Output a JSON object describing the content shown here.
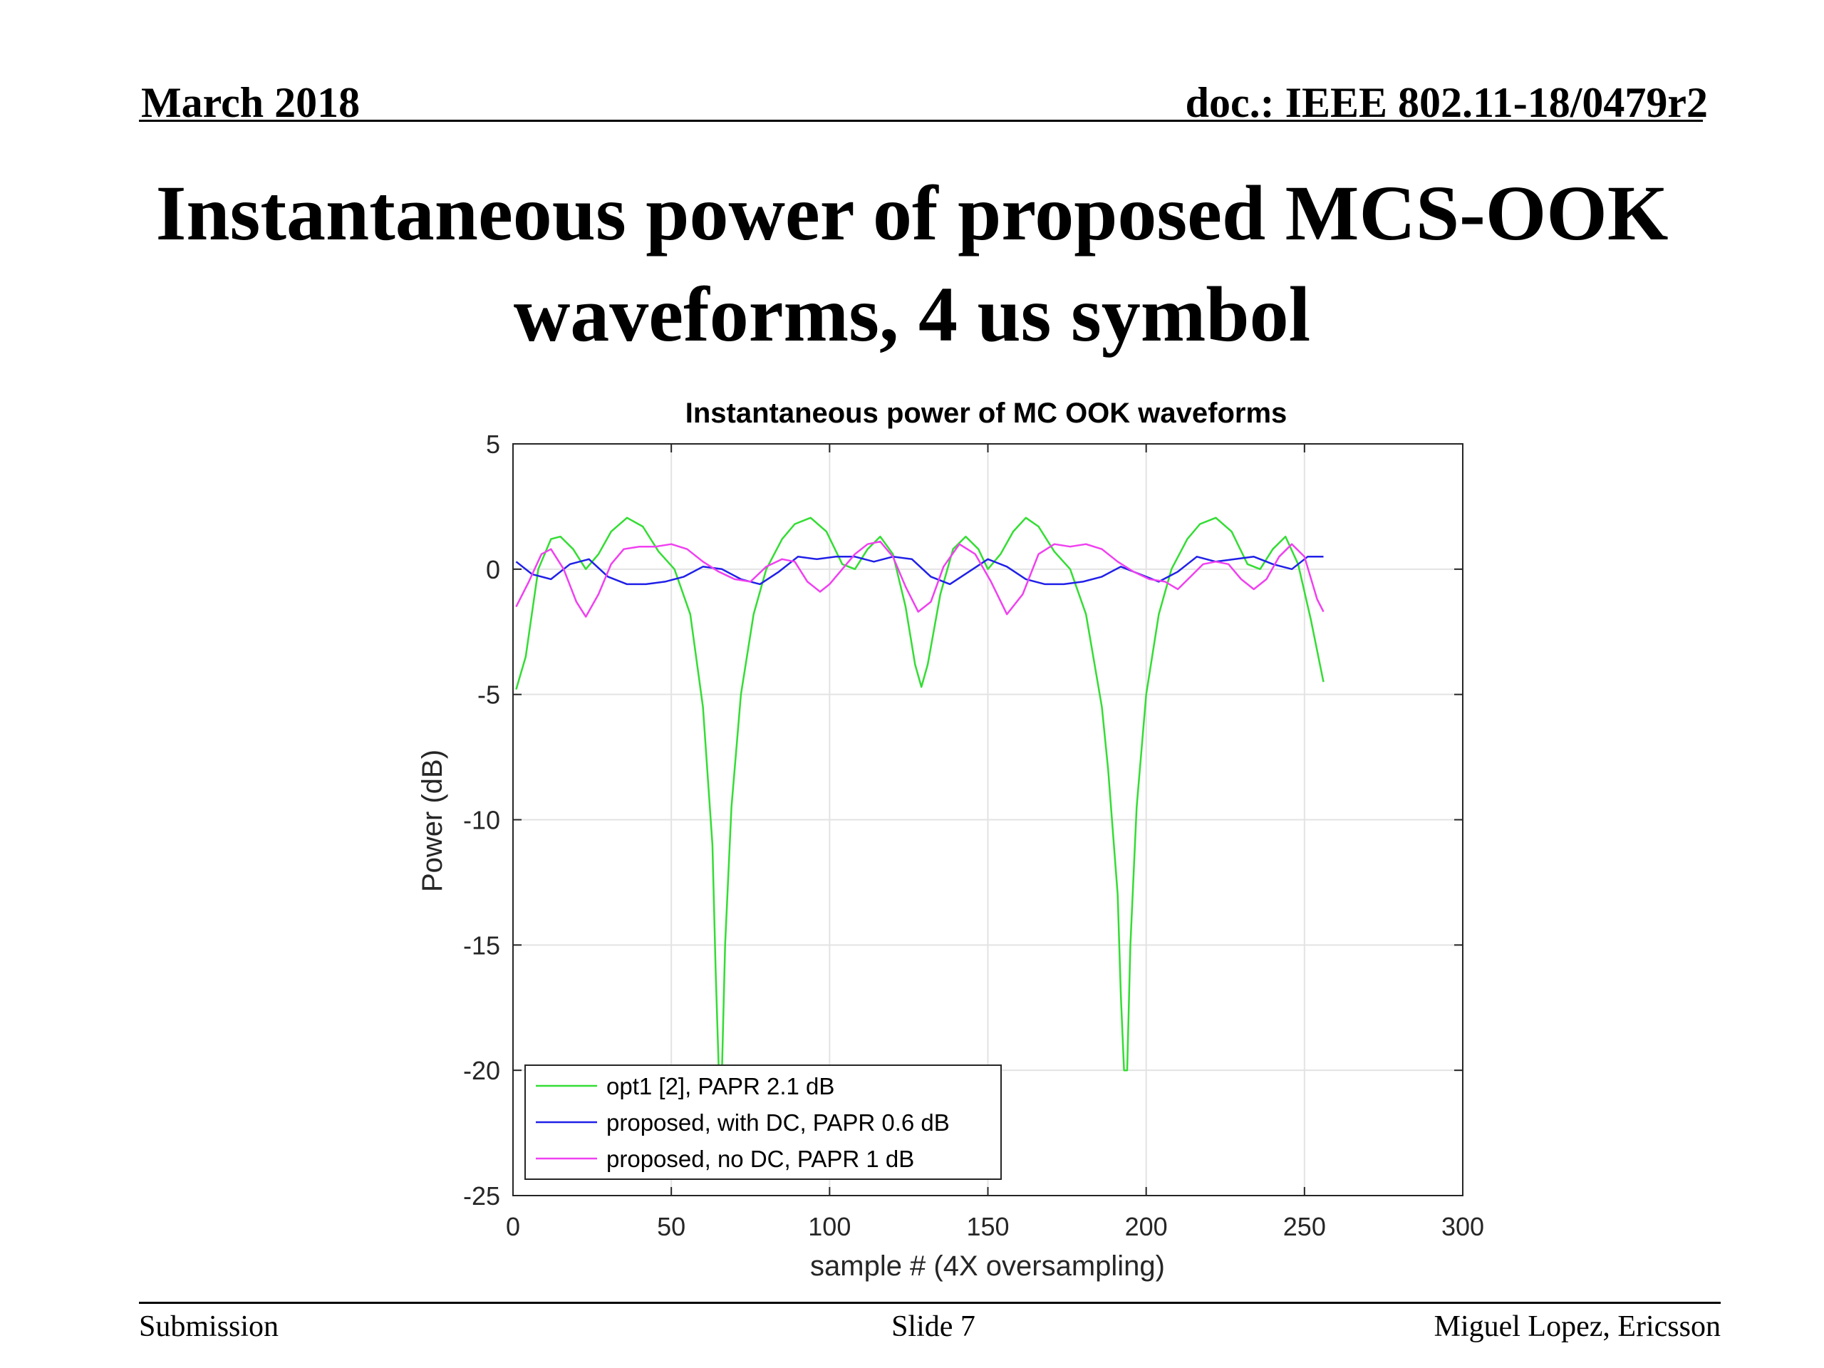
{
  "header": {
    "date": "March 2018",
    "doc": "doc.: IEEE 802.11-18/0479r2"
  },
  "slide_title": "Instantaneous power of proposed MCS-OOK waveforms, 4 us symbol",
  "footer": {
    "left": "Submission",
    "center": "Slide 7",
    "right": "Miguel Lopez, Ericsson"
  },
  "colors": {
    "opt1": "#33dd33",
    "with_dc": "#2020e8",
    "no_dc": "#f040f0",
    "grid": "#e3e3e3",
    "axis": "#262626"
  },
  "chart_data": {
    "type": "line",
    "title": "Instantaneous power of MC OOK waveforms",
    "xlabel": "sample # (4X oversampling)",
    "ylabel": "Power (dB)",
    "xlim": [
      0,
      300
    ],
    "ylim": [
      -25,
      5
    ],
    "xticks": [
      0,
      50,
      100,
      150,
      200,
      250,
      300
    ],
    "yticks": [
      -25,
      -20,
      -15,
      -10,
      -5,
      0,
      5
    ],
    "grid": true,
    "legend_position": "bottom-left",
    "series": [
      {
        "name": "opt1 [2], PAPR 2.1 dB",
        "color": "#33dd33",
        "x": [
          1,
          4,
          8,
          12,
          15,
          19,
          23,
          27,
          31,
          36,
          41,
          46,
          51,
          56,
          60,
          63,
          64,
          65,
          66,
          67,
          69,
          72,
          76,
          80,
          85,
          89,
          94,
          99,
          104,
          108,
          112,
          116,
          120,
          124,
          127,
          129,
          131,
          135,
          139,
          143,
          147,
          150,
          154,
          158,
          162,
          166,
          171,
          176,
          181,
          186,
          188,
          191,
          192,
          193,
          194,
          195,
          197,
          200,
          204,
          208,
          213,
          217,
          222,
          227,
          232,
          236,
          240,
          244,
          248,
          252,
          256
        ],
        "y": [
          -4.8,
          -3.5,
          0.0,
          1.2,
          1.3,
          0.8,
          0.0,
          0.6,
          1.5,
          2.05,
          1.7,
          0.7,
          0.0,
          -1.8,
          -5.5,
          -11.0,
          -16.0,
          -20.0,
          -20.0,
          -15.0,
          -9.5,
          -5.0,
          -1.8,
          0.0,
          1.2,
          1.8,
          2.05,
          1.5,
          0.2,
          0.0,
          0.8,
          1.3,
          0.6,
          -1.5,
          -3.8,
          -4.7,
          -3.8,
          -1.0,
          0.8,
          1.3,
          0.8,
          0.0,
          0.6,
          1.5,
          2.05,
          1.7,
          0.7,
          0.0,
          -1.8,
          -5.5,
          -8.0,
          -13.0,
          -17.0,
          -20.0,
          -20.0,
          -15.0,
          -9.5,
          -5.0,
          -1.8,
          0.0,
          1.2,
          1.8,
          2.05,
          1.5,
          0.2,
          0.0,
          0.8,
          1.3,
          0.2,
          -2.0,
          -4.5
        ]
      },
      {
        "name": "proposed, with DC, PAPR 0.6 dB",
        "color": "#2020e8",
        "x": [
          1,
          6,
          12,
          18,
          24,
          30,
          36,
          42,
          48,
          54,
          60,
          66,
          72,
          78,
          84,
          90,
          96,
          102,
          108,
          114,
          120,
          126,
          132,
          138,
          144,
          150,
          156,
          162,
          168,
          174,
          180,
          186,
          192,
          198,
          204,
          210,
          216,
          222,
          228,
          234,
          240,
          246,
          251,
          256
        ],
        "y": [
          0.3,
          -0.2,
          -0.4,
          0.2,
          0.4,
          -0.3,
          -0.6,
          -0.6,
          -0.5,
          -0.3,
          0.1,
          0.0,
          -0.4,
          -0.6,
          -0.1,
          0.5,
          0.4,
          0.5,
          0.5,
          0.3,
          0.5,
          0.4,
          -0.3,
          -0.6,
          -0.1,
          0.4,
          0.1,
          -0.4,
          -0.6,
          -0.6,
          -0.5,
          -0.3,
          0.1,
          -0.2,
          -0.5,
          -0.1,
          0.5,
          0.3,
          0.4,
          0.5,
          0.2,
          0.0,
          0.5,
          0.5
        ]
      },
      {
        "name": "proposed, no DC, PAPR 1 dB",
        "color": "#f040f0",
        "x": [
          1,
          5,
          9,
          12,
          16,
          20,
          23,
          27,
          31,
          35,
          40,
          45,
          50,
          55,
          60,
          65,
          70,
          75,
          80,
          85,
          89,
          93,
          97,
          100,
          104,
          108,
          112,
          116,
          120,
          124,
          128,
          132,
          136,
          141,
          146,
          151,
          156,
          161,
          166,
          171,
          176,
          181,
          186,
          191,
          196,
          201,
          206,
          210,
          214,
          218,
          222,
          226,
          230,
          234,
          238,
          242,
          246,
          250,
          254,
          256
        ],
        "y": [
          -1.5,
          -0.5,
          0.6,
          0.8,
          0.0,
          -1.3,
          -1.9,
          -1.0,
          0.2,
          0.8,
          0.9,
          0.9,
          1.0,
          0.8,
          0.3,
          -0.1,
          -0.4,
          -0.5,
          0.1,
          0.4,
          0.3,
          -0.5,
          -0.9,
          -0.6,
          0.0,
          0.6,
          1.0,
          1.1,
          0.5,
          -0.7,
          -1.7,
          -1.3,
          0.1,
          1.0,
          0.6,
          -0.5,
          -1.8,
          -1.0,
          0.6,
          1.0,
          0.9,
          1.0,
          0.8,
          0.3,
          -0.1,
          -0.4,
          -0.5,
          -0.8,
          -0.3,
          0.2,
          0.3,
          0.2,
          -0.4,
          -0.8,
          -0.4,
          0.5,
          1.0,
          0.5,
          -1.2,
          -1.7
        ]
      }
    ]
  }
}
